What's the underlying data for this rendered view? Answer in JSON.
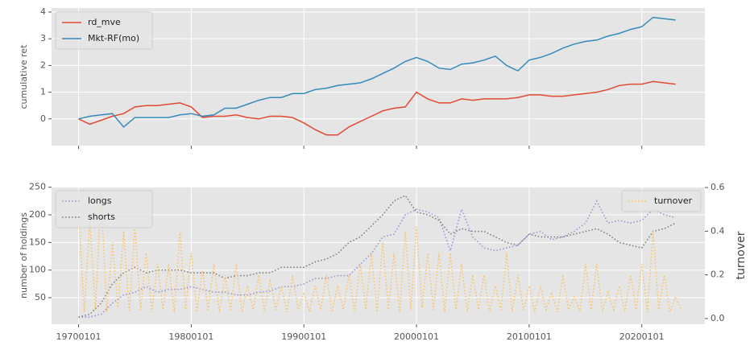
{
  "chart_data": [
    {
      "type": "line",
      "ylabel": "cumulative ret",
      "x": [
        1970,
        1971,
        1972,
        1973,
        1974,
        1975,
        1976,
        1977,
        1978,
        1979,
        1980,
        1981,
        1982,
        1983,
        1984,
        1985,
        1986,
        1987,
        1988,
        1989,
        1990,
        1991,
        1992,
        1993,
        1994,
        1995,
        1996,
        1997,
        1998,
        1999,
        2000,
        2001,
        2002,
        2003,
        2004,
        2005,
        2006,
        2007,
        2008,
        2009,
        2010,
        2011,
        2012,
        2013,
        2014,
        2015,
        2016,
        2017,
        2018,
        2019,
        2020,
        2021,
        2022,
        2023
      ],
      "series": [
        {
          "name": "rd_mve",
          "color": "#e24a33",
          "values": [
            0,
            -0.2,
            -0.05,
            0.1,
            0.2,
            0.45,
            0.5,
            0.5,
            0.55,
            0.6,
            0.45,
            0.05,
            0.1,
            0.1,
            0.15,
            0.05,
            0,
            0.1,
            0.1,
            0.05,
            -0.15,
            -0.4,
            -0.6,
            -0.6,
            -0.3,
            -0.1,
            0.1,
            0.3,
            0.4,
            0.45,
            1.0,
            0.75,
            0.6,
            0.6,
            0.75,
            0.7,
            0.75,
            0.75,
            0.75,
            0.8,
            0.9,
            0.9,
            0.85,
            0.85,
            0.9,
            0.95,
            1.0,
            1.1,
            1.25,
            1.3,
            1.3,
            1.4,
            1.35,
            1.3
          ]
        },
        {
          "name": "Mkt-RF(mo)",
          "color": "#348abd",
          "values": [
            0,
            0.1,
            0.15,
            0.2,
            -0.3,
            0.05,
            0.05,
            0.05,
            0.05,
            0.15,
            0.2,
            0.1,
            0.15,
            0.4,
            0.4,
            0.55,
            0.7,
            0.8,
            0.8,
            0.95,
            0.95,
            1.1,
            1.15,
            1.25,
            1.3,
            1.35,
            1.5,
            1.7,
            1.9,
            2.15,
            2.3,
            2.15,
            1.9,
            1.85,
            2.05,
            2.1,
            2.2,
            2.35,
            2.0,
            1.8,
            2.2,
            2.3,
            2.45,
            2.65,
            2.8,
            2.9,
            2.95,
            3.1,
            3.2,
            3.35,
            3.45,
            3.8,
            3.75,
            3.7
          ]
        }
      ],
      "xlim": [
        1967.6,
        2025.6
      ],
      "xticks": [
        1970,
        1980,
        1990,
        2000,
        2010,
        2020
      ],
      "show_xticklabels": false,
      "ylim": [
        -1,
        4.15
      ],
      "yticks": [
        0,
        1,
        2,
        3,
        4
      ],
      "grid": true,
      "legend": "upper left"
    },
    {
      "type": "line",
      "ylabel": "number of holdings",
      "y2label": "turnover",
      "x": [
        1970,
        1971,
        1972,
        1973,
        1974,
        1975,
        1976,
        1977,
        1978,
        1979,
        1980,
        1981,
        1982,
        1983,
        1984,
        1985,
        1986,
        1987,
        1988,
        1989,
        1990,
        1991,
        1992,
        1993,
        1994,
        1995,
        1996,
        1997,
        1998,
        1999,
        2000,
        2001,
        2002,
        2003,
        2004,
        2005,
        2006,
        2007,
        2008,
        2009,
        2010,
        2011,
        2012,
        2013,
        2014,
        2015,
        2016,
        2017,
        2018,
        2019,
        2020,
        2021,
        2022,
        2023
      ],
      "series": [
        {
          "name": "longs",
          "color": "#988ed5",
          "linestyle": "dotted",
          "values": [
            15,
            15,
            20,
            40,
            55,
            60,
            70,
            60,
            65,
            65,
            70,
            65,
            60,
            60,
            55,
            55,
            60,
            62,
            70,
            70,
            75,
            85,
            85,
            90,
            90,
            110,
            130,
            160,
            165,
            200,
            210,
            205,
            195,
            135,
            210,
            160,
            140,
            135,
            140,
            145,
            165,
            170,
            155,
            160,
            170,
            185,
            225,
            185,
            190,
            185,
            190,
            210,
            200,
            195
          ]
        },
        {
          "name": "shorts",
          "color": "#777777",
          "linestyle": "dotted",
          "values": [
            15,
            20,
            40,
            75,
            95,
            105,
            95,
            100,
            100,
            100,
            95,
            95,
            95,
            85,
            90,
            90,
            95,
            95,
            105,
            105,
            105,
            115,
            120,
            130,
            150,
            160,
            180,
            200,
            225,
            235,
            205,
            200,
            190,
            165,
            175,
            170,
            170,
            160,
            150,
            145,
            165,
            160,
            160,
            160,
            165,
            170,
            175,
            165,
            150,
            145,
            140,
            170,
            175,
            185
          ]
        },
        {
          "name": "turnover",
          "color": "#fbc15e",
          "linestyle": "dotted",
          "axis": "y2",
          "x": [
            1970,
            1970.5,
            1971,
            1971.5,
            1972,
            1972.5,
            1973,
            1973.5,
            1974,
            1974.5,
            1975,
            1975.5,
            1976,
            1976.5,
            1977,
            1977.5,
            1978,
            1978.5,
            1979,
            1979.5,
            1980,
            1980.5,
            1981,
            1981.5,
            1982,
            1982.5,
            1983,
            1983.5,
            1984,
            1984.5,
            1985,
            1985.5,
            1986,
            1986.5,
            1987,
            1987.5,
            1988,
            1988.5,
            1989,
            1989.5,
            1990,
            1990.5,
            1991,
            1991.5,
            1992,
            1992.5,
            1993,
            1993.5,
            1994,
            1994.5,
            1995,
            1995.5,
            1996,
            1996.5,
            1997,
            1997.5,
            1998,
            1998.5,
            1999,
            1999.5,
            2000,
            2000.5,
            2001,
            2001.5,
            2002,
            2002.5,
            2003,
            2003.5,
            2004,
            2004.5,
            2005,
            2005.5,
            2006,
            2006.5,
            2007,
            2007.5,
            2008,
            2008.5,
            2009,
            2009.5,
            2010,
            2010.5,
            2011,
            2011.5,
            2012,
            2012.5,
            2013,
            2013.5,
            2014,
            2014.5,
            2015,
            2015.5,
            2016,
            2016.5,
            2017,
            2017.5,
            2018,
            2018.5,
            2019,
            2019.5,
            2020,
            2020.5,
            2021,
            2021.5,
            2022,
            2022.5,
            2023,
            2023.5
          ],
          "values": [
            0.5,
            0.03,
            0.45,
            0.04,
            0.58,
            0.03,
            0.35,
            0.05,
            0.4,
            0.03,
            0.42,
            0.04,
            0.3,
            0.03,
            0.25,
            0.04,
            0.25,
            0.03,
            0.4,
            0.04,
            0.3,
            0.03,
            0.22,
            0.04,
            0.25,
            0.03,
            0.2,
            0.04,
            0.25,
            0.03,
            0.15,
            0.04,
            0.2,
            0.03,
            0.18,
            0.04,
            0.15,
            0.03,
            0.2,
            0.04,
            0.12,
            0.03,
            0.15,
            0.04,
            0.2,
            0.03,
            0.15,
            0.04,
            0.2,
            0.03,
            0.25,
            0.04,
            0.3,
            0.03,
            0.35,
            0.04,
            0.3,
            0.03,
            0.4,
            0.04,
            0.42,
            0.05,
            0.3,
            0.04,
            0.3,
            0.03,
            0.3,
            0.04,
            0.25,
            0.03,
            0.2,
            0.04,
            0.2,
            0.03,
            0.15,
            0.04,
            0.3,
            0.03,
            0.2,
            0.04,
            0.15,
            0.03,
            0.15,
            0.04,
            0.12,
            0.03,
            0.2,
            0.04,
            0.1,
            0.03,
            0.25,
            0.04,
            0.25,
            0.03,
            0.12,
            0.04,
            0.15,
            0.03,
            0.2,
            0.04,
            0.25,
            0.03,
            0.4,
            0.04,
            0.2,
            0.03,
            0.1,
            0.04
          ]
        }
      ],
      "xlim": [
        1967.6,
        2025.6
      ],
      "xticks": [
        {
          "value": 1970,
          "label": "19700101"
        },
        {
          "value": 1980,
          "label": "19800101"
        },
        {
          "value": 1990,
          "label": "19900101"
        },
        {
          "value": 2000,
          "label": "20000101"
        },
        {
          "value": 2010,
          "label": "20100101"
        },
        {
          "value": 2020,
          "label": "20200101"
        }
      ],
      "show_xticklabels": true,
      "ylim": [
        2,
        251
      ],
      "yticks": [
        50,
        100,
        150,
        200,
        250
      ],
      "y2lim": [
        -0.026,
        0.604
      ],
      "y2ticks": [
        {
          "value": 0,
          "label": "0.0"
        },
        {
          "value": 0.2,
          "label": "0.2"
        },
        {
          "value": 0.4,
          "label": "0.4"
        },
        {
          "value": 0.6,
          "label": "0.6"
        }
      ],
      "grid": true,
      "legend": "upper left",
      "legend2": "upper right"
    }
  ]
}
